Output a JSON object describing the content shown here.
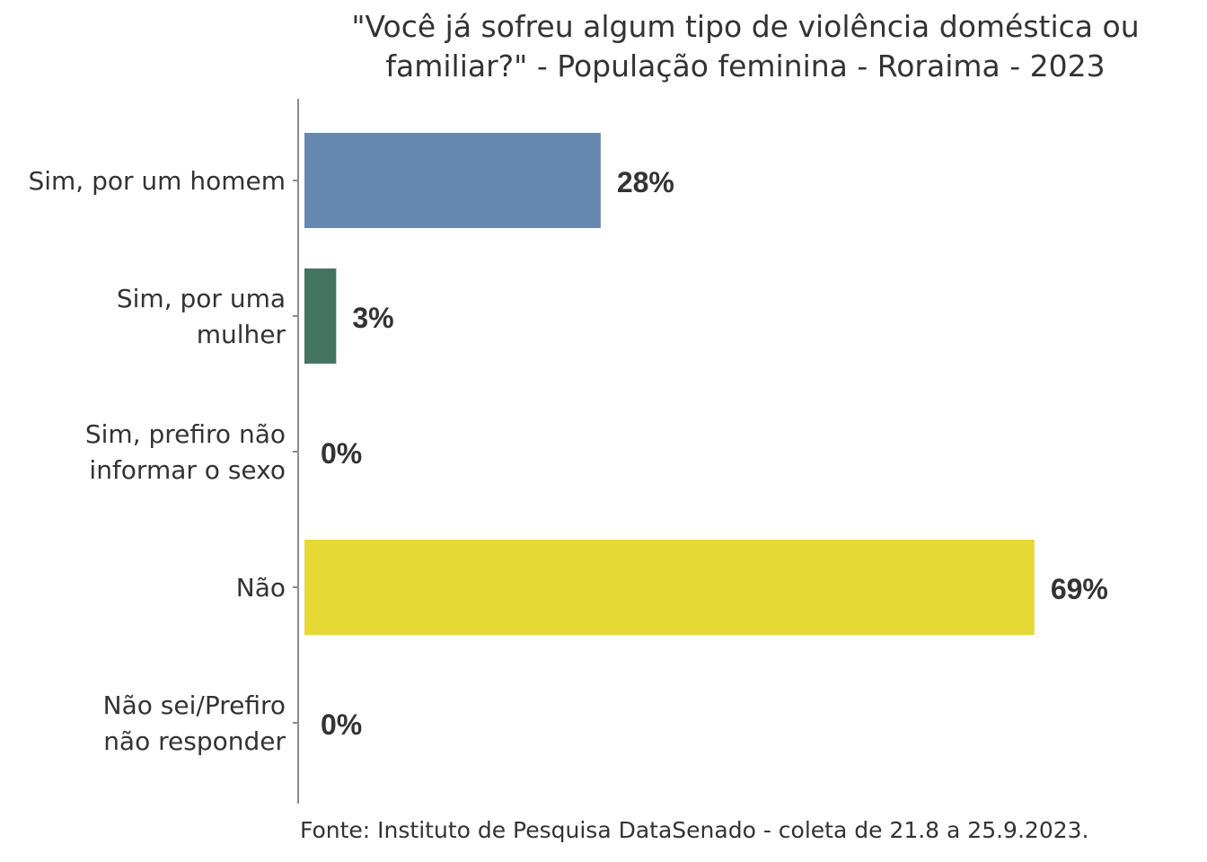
{
  "chart_data": {
    "type": "bar",
    "orientation": "horizontal",
    "title": "\"Você já sofreu algum tipo de violência doméstica ou familiar?\" - População feminina - Roraima - 2023",
    "title_lines": [
      "\"Você já sofreu algum tipo de violência doméstica ou",
      "familiar?\" - População feminina - Roraima - 2023"
    ],
    "categories": [
      "Sim, por um homem",
      "Sim, por uma mulher",
      "Sim, prefiro não informar o sexo",
      "Não",
      "Não sei/Prefiro não responder"
    ],
    "category_lines": [
      [
        "Sim, por um homem"
      ],
      [
        "Sim, por uma",
        "mulher"
      ],
      [
        "Sim, prefiro não",
        "informar o sexo"
      ],
      [
        "Não"
      ],
      [
        "Não sei/Prefiro",
        "não responder"
      ]
    ],
    "values": [
      28,
      3,
      0,
      69,
      0
    ],
    "value_labels": [
      "28%",
      "3%",
      "0%",
      "69%",
      "0%"
    ],
    "colors": [
      "#6688b0",
      "#437562",
      "#2e4a6b",
      "#e5d935",
      "#8a8a8a"
    ],
    "xlim": [
      0,
      70
    ],
    "xlabel": "",
    "ylabel": "",
    "grid": false,
    "legend": "none"
  },
  "source": "Fonte: Instituto de Pesquisa DataSenado - coleta de 21.8 a 25.9.2023."
}
